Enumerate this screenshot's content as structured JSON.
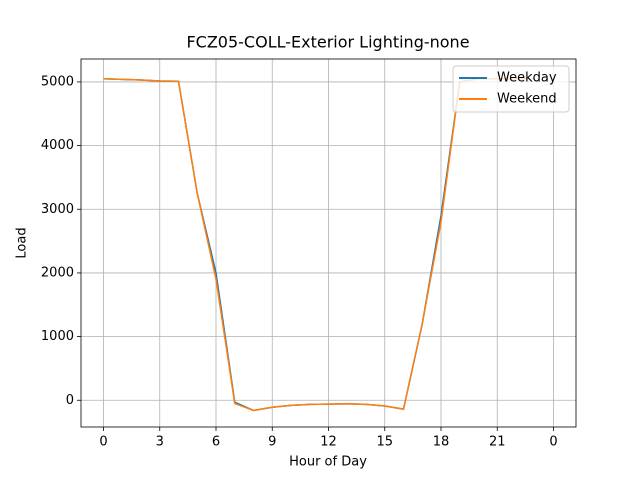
{
  "chart_data": {
    "type": "line",
    "title": "FCZ05-COLL-Exterior Lighting-none",
    "x_label": "Hour of Day",
    "y_label": "Load",
    "x": [
      0,
      1,
      2,
      3,
      4,
      5,
      6,
      7,
      8,
      9,
      10,
      11,
      12,
      13,
      14,
      15,
      16,
      17,
      18,
      19,
      20,
      21,
      22,
      23
    ],
    "series": [
      {
        "name": "Weekday",
        "color": "#1f77b4",
        "values": [
          5050,
          5040,
          5030,
          5015,
          5010,
          3250,
          2000,
          -30,
          -160,
          -110,
          -80,
          -65,
          -60,
          -55,
          -65,
          -90,
          -140,
          1200,
          2900,
          5000,
          5050,
          5050,
          5050,
          5050
        ]
      },
      {
        "name": "Weekend",
        "color": "#ff7f0e",
        "values": [
          5050,
          5040,
          5030,
          5015,
          5010,
          3250,
          1900,
          -50,
          -160,
          -110,
          -80,
          -65,
          -60,
          -55,
          -65,
          -90,
          -140,
          1200,
          2800,
          5000,
          5050,
          5050,
          5050,
          5050
        ]
      }
    ],
    "xlim": [
      -1.2,
      25.2
    ],
    "ylim": [
      -420,
      5360
    ],
    "xticks": [
      0,
      3,
      6,
      9,
      12,
      15,
      18,
      21,
      {
        "value": 24,
        "label": "0"
      }
    ],
    "yticks": [
      0,
      1000,
      2000,
      3000,
      4000,
      5000
    ],
    "grid": true,
    "legend": "upper-right"
  }
}
